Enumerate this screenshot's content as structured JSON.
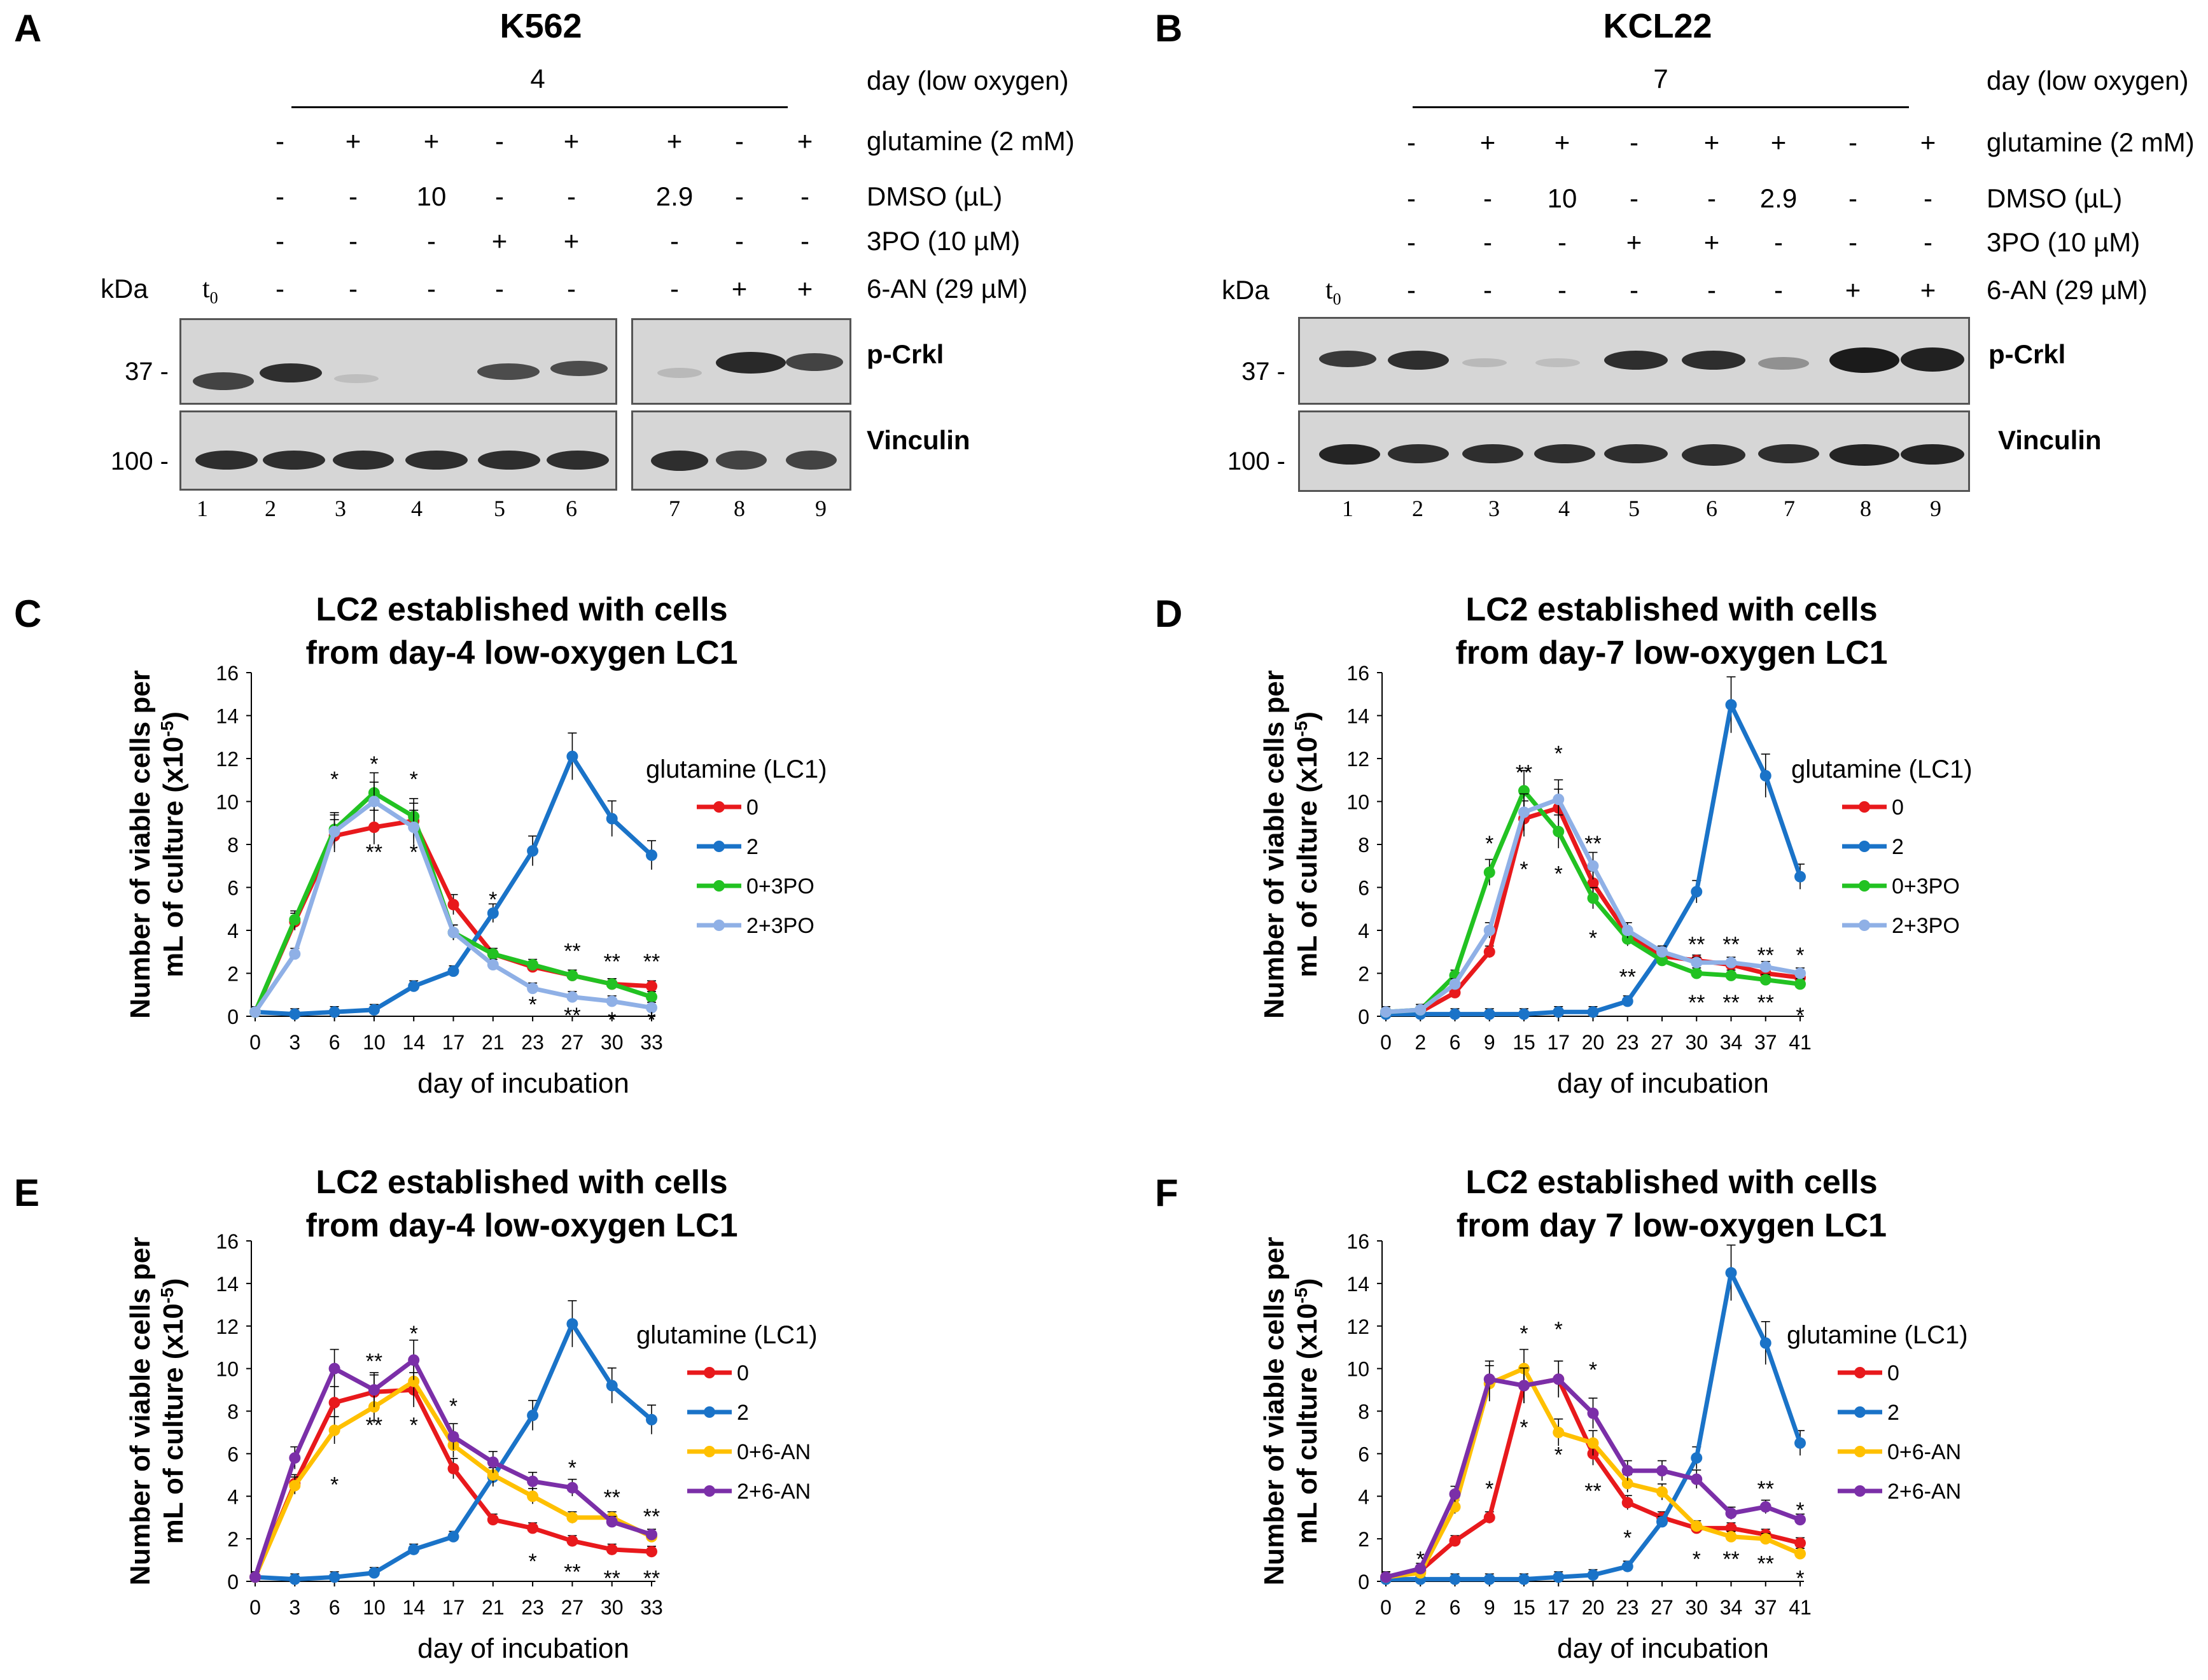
{
  "panels": {
    "A": {
      "letter": "A",
      "cell": "K562",
      "day_value": "4",
      "day_label": "day (low oxygen)",
      "row_labels": {
        "glutamine": "glutamine (2 mM)",
        "dmso": "DMSO (µL)",
        "po3": "3PO (10 µM)",
        "an6": "6-AN (29 µM)"
      },
      "kda": "kDa",
      "t0": "t",
      "t0_sub": "0",
      "glutamine": [
        "-",
        "+",
        "+",
        "-",
        "+",
        "+",
        "-",
        "+"
      ],
      "dmso": [
        "-",
        "-",
        "10",
        "-",
        "-",
        "2.9",
        "-",
        "-"
      ],
      "po3": [
        "-",
        "-",
        "-",
        "+",
        "+",
        "-",
        "-",
        "-"
      ],
      "an6": [
        "-",
        "-",
        "-",
        "-",
        "-",
        "-",
        "+",
        "+"
      ],
      "mw_top": "37 -",
      "mw_bottom": "100 -",
      "proteins": [
        "p-Crkl",
        "Vinculin"
      ],
      "lanes": [
        "1",
        "2",
        "3",
        "4",
        "5",
        "6",
        "7",
        "8",
        "9"
      ]
    },
    "B": {
      "letter": "B",
      "cell": "KCL22",
      "day_value": "7",
      "day_label": "day (low oxygen)",
      "row_labels": {
        "glutamine": "glutamine (2 mM)",
        "dmso": "DMSO (µL)",
        "po3": "3PO (10 µM)",
        "an6": "6-AN (29 µM)"
      },
      "kda": "kDa",
      "t0": "t",
      "t0_sub": "0",
      "glutamine": [
        "-",
        "+",
        "+",
        "-",
        "+",
        "+",
        "-",
        "+"
      ],
      "dmso": [
        "-",
        "-",
        "10",
        "-",
        "-",
        "2.9",
        "-",
        "-"
      ],
      "po3": [
        "-",
        "-",
        "-",
        "+",
        "+",
        "-",
        "-",
        "-"
      ],
      "an6": [
        "-",
        "-",
        "-",
        "-",
        "-",
        "-",
        "+",
        "+"
      ],
      "mw_top": "37 -",
      "mw_bottom": "100 -",
      "proteins": [
        "p-Crkl",
        "Vinculin"
      ],
      "lanes": [
        "1",
        "2",
        "3",
        "4",
        "5",
        "6",
        "7",
        "8",
        "9"
      ]
    }
  },
  "chart_data": [
    {
      "id": "C",
      "type": "line",
      "title": [
        "LC2 established with cells",
        "from day-4 low-oxygen LC1"
      ],
      "xlabel": "day of incubation",
      "ylabel": [
        "Number of viable cells per",
        "mL of culture (x10",
        "-5",
        ")"
      ],
      "categories": [
        "0",
        "3",
        "6",
        "10",
        "14",
        "17",
        "21",
        "23",
        "27",
        "30",
        "33"
      ],
      "ylim": [
        0,
        16
      ],
      "yticks": [
        "0",
        "2",
        "4",
        "6",
        "8",
        "10",
        "12",
        "14",
        "16"
      ],
      "legend_title": "glutamine (LC1)",
      "legend_position": "right",
      "series": [
        {
          "name": "0",
          "color": "#e8191c",
          "values": [
            0.2,
            4.4,
            8.4,
            8.8,
            9.1,
            5.2,
            2.9,
            2.3,
            1.9,
            1.5,
            1.4
          ]
        },
        {
          "name": "2",
          "color": "#1a73c8",
          "values": [
            0.2,
            0.1,
            0.2,
            0.3,
            1.4,
            2.1,
            4.8,
            7.7,
            12.1,
            9.2,
            7.5
          ]
        },
        {
          "name": "0+3PO",
          "color": "#22c222",
          "values": [
            0.2,
            4.5,
            8.7,
            10.4,
            9.3,
            3.9,
            2.9,
            2.4,
            1.9,
            1.5,
            0.9
          ]
        },
        {
          "name": "2+3PO",
          "color": "#8fb0e6",
          "values": [
            0.2,
            2.9,
            8.6,
            10.0,
            8.8,
            3.9,
            2.4,
            1.3,
            0.9,
            0.7,
            0.4
          ]
        }
      ],
      "annotations": [
        {
          "x": "6",
          "y": 11.0,
          "text": "*"
        },
        {
          "x": "10",
          "y": 11.7,
          "text": "*"
        },
        {
          "x": "10",
          "y": 7.6,
          "text": "**"
        },
        {
          "x": "14",
          "y": 11.0,
          "text": "*"
        },
        {
          "x": "14",
          "y": 7.6,
          "text": "*"
        },
        {
          "x": "21",
          "y": 5.4,
          "text": "*"
        },
        {
          "x": "23",
          "y": 0.5,
          "text": "*"
        },
        {
          "x": "27",
          "y": 3.0,
          "text": "**"
        },
        {
          "x": "27",
          "y": 0.0,
          "text": "**"
        },
        {
          "x": "30",
          "y": 2.5,
          "text": "**"
        },
        {
          "x": "30",
          "y": -0.2,
          "text": "*"
        },
        {
          "x": "33",
          "y": 2.5,
          "text": "**"
        },
        {
          "x": "33",
          "y": -0.2,
          "text": "*"
        }
      ]
    },
    {
      "id": "D",
      "type": "line",
      "title": [
        "LC2 established with cells",
        "from day-7 low-oxygen LC1"
      ],
      "xlabel": "day of incubation",
      "ylabel": [
        "Number of viable cells per",
        "mL of culture (x10",
        "-5",
        ")"
      ],
      "categories": [
        "0",
        "2",
        "6",
        "9",
        "15",
        "17",
        "20",
        "23",
        "27",
        "30",
        "34",
        "37",
        "41"
      ],
      "ylim": [
        0,
        16
      ],
      "yticks": [
        "0",
        "2",
        "4",
        "6",
        "8",
        "10",
        "12",
        "14",
        "16"
      ],
      "legend_title": "glutamine (LC1)",
      "legend_position": "right",
      "series": [
        {
          "name": "0",
          "color": "#e8191c",
          "values": [
            0.2,
            0.2,
            1.1,
            3.0,
            9.2,
            9.7,
            6.2,
            3.8,
            2.8,
            2.6,
            2.4,
            2.0,
            1.8
          ]
        },
        {
          "name": "2",
          "color": "#1a73c8",
          "values": [
            0.1,
            0.1,
            0.1,
            0.1,
            0.1,
            0.2,
            0.2,
            0.7,
            3.0,
            5.8,
            14.5,
            11.2,
            6.5
          ]
        },
        {
          "name": "0+3PO",
          "color": "#22c222",
          "values": [
            0.2,
            0.3,
            1.9,
            6.7,
            10.5,
            8.6,
            5.5,
            3.6,
            2.6,
            2.0,
            1.9,
            1.7,
            1.5
          ]
        },
        {
          "name": "2+3PO",
          "color": "#8fb0e6",
          "values": [
            0.2,
            0.3,
            1.5,
            4.0,
            9.5,
            10.1,
            7.0,
            4.0,
            3.0,
            2.5,
            2.5,
            2.3,
            2.0
          ]
        }
      ],
      "annotations": [
        {
          "x": "9",
          "y": 8.0,
          "text": "*"
        },
        {
          "x": "15",
          "y": 11.3,
          "text": "**"
        },
        {
          "x": "15",
          "y": 6.8,
          "text": "*"
        },
        {
          "x": "17",
          "y": 12.2,
          "text": "*"
        },
        {
          "x": "17",
          "y": 6.6,
          "text": "*"
        },
        {
          "x": "20",
          "y": 8.0,
          "text": "**"
        },
        {
          "x": "20",
          "y": 3.6,
          "text": "*"
        },
        {
          "x": "23",
          "y": 1.8,
          "text": "**"
        },
        {
          "x": "30",
          "y": 3.3,
          "text": "**"
        },
        {
          "x": "30",
          "y": 0.6,
          "text": "**"
        },
        {
          "x": "34",
          "y": 3.3,
          "text": "**"
        },
        {
          "x": "34",
          "y": 0.6,
          "text": "**"
        },
        {
          "x": "37",
          "y": 2.8,
          "text": "**"
        },
        {
          "x": "37",
          "y": 0.6,
          "text": "**"
        },
        {
          "x": "41",
          "y": 2.8,
          "text": "*"
        },
        {
          "x": "41",
          "y": 0.0,
          "text": "*"
        }
      ]
    },
    {
      "id": "E",
      "type": "line",
      "title": [
        "LC2 established with cells",
        "from day-4 low-oxygen LC1"
      ],
      "xlabel": "day of incubation",
      "ylabel": [
        "Number of viable cells per",
        "mL of culture (x10",
        "-5",
        ")"
      ],
      "categories": [
        "0",
        "3",
        "6",
        "10",
        "14",
        "17",
        "21",
        "23",
        "27",
        "30",
        "33"
      ],
      "ylim": [
        0,
        16
      ],
      "yticks": [
        "0",
        "2",
        "4",
        "6",
        "8",
        "10",
        "12",
        "14",
        "16"
      ],
      "legend_title": "glutamine (LC1)",
      "legend_position": "right",
      "series": [
        {
          "name": "0",
          "color": "#e8191c",
          "values": [
            0.2,
            4.6,
            8.4,
            8.9,
            9.0,
            5.3,
            2.9,
            2.5,
            1.9,
            1.5,
            1.4
          ]
        },
        {
          "name": "2",
          "color": "#1a73c8",
          "values": [
            0.2,
            0.1,
            0.2,
            0.4,
            1.5,
            2.1,
            4.9,
            7.8,
            12.1,
            9.2,
            7.6
          ]
        },
        {
          "name": "0+6-AN",
          "color": "#ffc000",
          "values": [
            0.2,
            4.5,
            7.1,
            8.2,
            9.4,
            6.4,
            5.0,
            4.0,
            3.0,
            3.0,
            2.1
          ]
        },
        {
          "name": "2+6-AN",
          "color": "#7b2fa8",
          "values": [
            0.2,
            5.8,
            10.0,
            9.0,
            10.4,
            6.8,
            5.6,
            4.7,
            4.4,
            2.8,
            2.2
          ]
        }
      ],
      "annotations": [
        {
          "x": "6",
          "y": 4.5,
          "text": "*"
        },
        {
          "x": "10",
          "y": 10.3,
          "text": "**"
        },
        {
          "x": "10",
          "y": 7.3,
          "text": "**"
        },
        {
          "x": "14",
          "y": 11.6,
          "text": "*"
        },
        {
          "x": "14",
          "y": 7.3,
          "text": "*"
        },
        {
          "x": "17",
          "y": 8.2,
          "text": "*"
        },
        {
          "x": "23",
          "y": 0.9,
          "text": "*"
        },
        {
          "x": "27",
          "y": 5.3,
          "text": "*"
        },
        {
          "x": "27",
          "y": 0.4,
          "text": "**"
        },
        {
          "x": "30",
          "y": 3.9,
          "text": "**"
        },
        {
          "x": "30",
          "y": 0.1,
          "text": "**"
        },
        {
          "x": "33",
          "y": 3.0,
          "text": "**"
        },
        {
          "x": "33",
          "y": 0.1,
          "text": "**"
        }
      ]
    },
    {
      "id": "F",
      "type": "line",
      "title": [
        "LC2 established with cells",
        "from day 7 low-oxygen LC1"
      ],
      "xlabel": "day of incubation",
      "ylabel": [
        "Number of viable cells per",
        "mL of culture (x10",
        "-5",
        ")"
      ],
      "categories": [
        "0",
        "2",
        "6",
        "9",
        "15",
        "17",
        "20",
        "23",
        "27",
        "30",
        "34",
        "37",
        "41"
      ],
      "ylim": [
        0,
        16
      ],
      "yticks": [
        "0",
        "2",
        "4",
        "6",
        "8",
        "10",
        "12",
        "14",
        "16"
      ],
      "legend_title": "glutamine (LC1)",
      "legend_position": "right",
      "series": [
        {
          "name": "0",
          "color": "#e8191c",
          "values": [
            0.2,
            0.5,
            1.9,
            3.0,
            9.2,
            9.5,
            6.0,
            3.7,
            3.0,
            2.5,
            2.5,
            2.2,
            1.8
          ]
        },
        {
          "name": "2",
          "color": "#1a73c8",
          "values": [
            0.1,
            0.1,
            0.1,
            0.1,
            0.1,
            0.2,
            0.3,
            0.7,
            2.8,
            5.8,
            14.5,
            11.2,
            6.5
          ]
        },
        {
          "name": "0+6-AN",
          "color": "#ffc000",
          "values": [
            0.2,
            0.4,
            3.5,
            9.3,
            10.0,
            7.0,
            6.5,
            4.6,
            4.2,
            2.6,
            2.1,
            2.0,
            1.3
          ]
        },
        {
          "name": "2+6-AN",
          "color": "#7b2fa8",
          "values": [
            0.2,
            0.6,
            4.1,
            9.5,
            9.2,
            9.5,
            7.9,
            5.2,
            5.2,
            4.8,
            3.2,
            3.5,
            2.9
          ]
        }
      ],
      "annotations": [
        {
          "x": "2",
          "y": 1.0,
          "text": "*"
        },
        {
          "x": "9",
          "y": 4.3,
          "text": "*"
        },
        {
          "x": "15",
          "y": 11.6,
          "text": "*"
        },
        {
          "x": "15",
          "y": 7.2,
          "text": "*"
        },
        {
          "x": "17",
          "y": 11.8,
          "text": "*"
        },
        {
          "x": "17",
          "y": 5.9,
          "text": "*"
        },
        {
          "x": "20",
          "y": 9.9,
          "text": "*"
        },
        {
          "x": "20",
          "y": 4.2,
          "text": "**"
        },
        {
          "x": "23",
          "y": 2.0,
          "text": "*"
        },
        {
          "x": "30",
          "y": 1.0,
          "text": "*"
        },
        {
          "x": "34",
          "y": 1.0,
          "text": "**"
        },
        {
          "x": "37",
          "y": 4.3,
          "text": "**"
        },
        {
          "x": "37",
          "y": 0.8,
          "text": "**"
        },
        {
          "x": "41",
          "y": 3.3,
          "text": "*"
        },
        {
          "x": "41",
          "y": 0.1,
          "text": "*"
        }
      ]
    }
  ]
}
